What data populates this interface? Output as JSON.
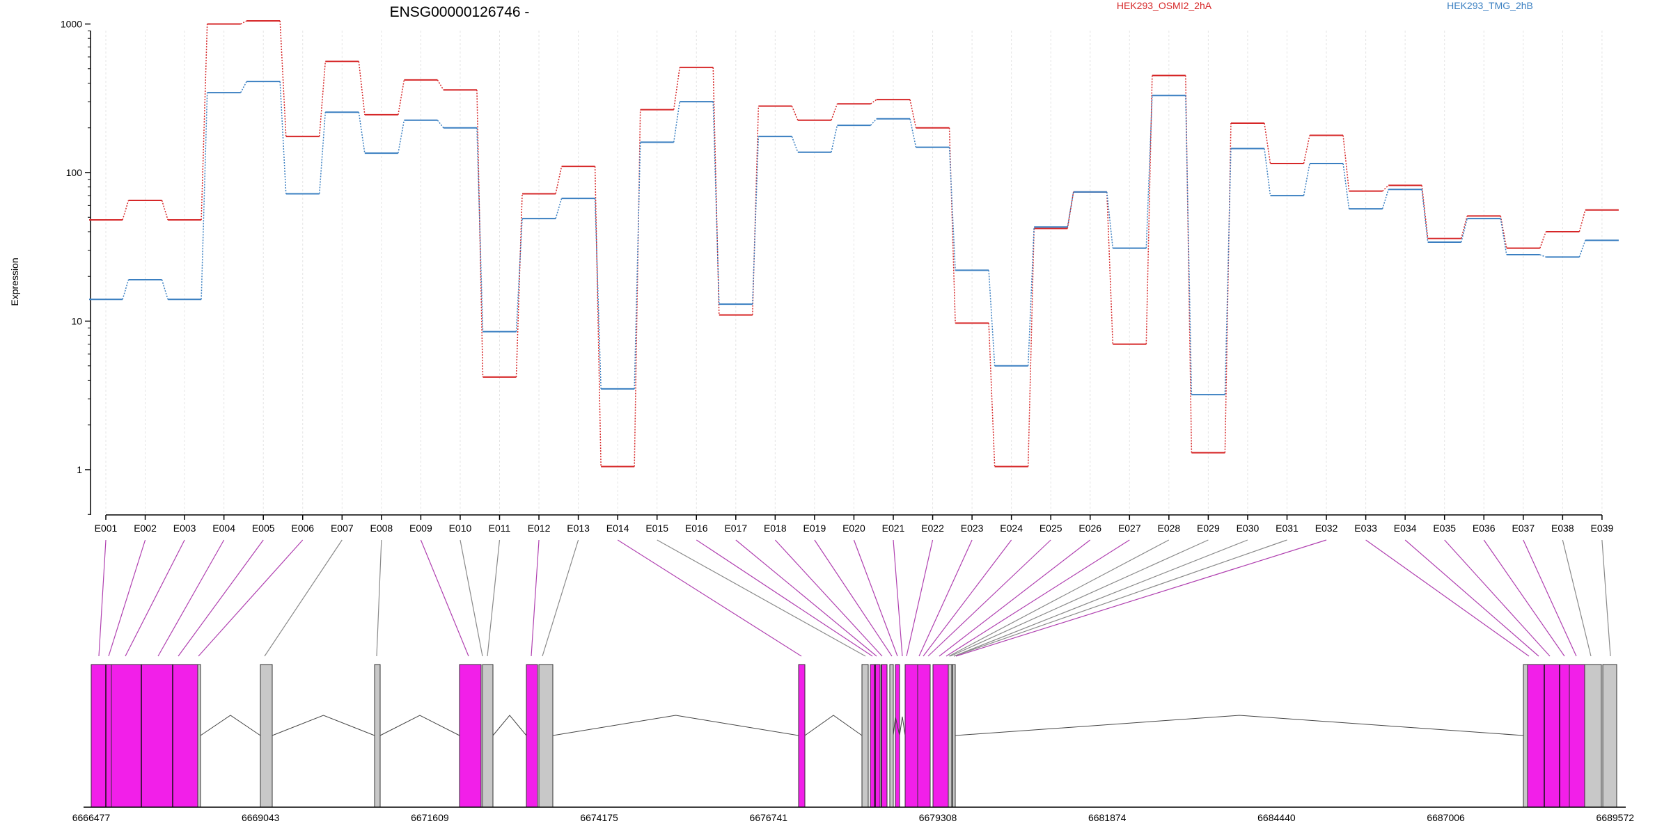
{
  "title": "ENSG00000126746 -",
  "legend": [
    {
      "name": "HEK293_OSMI2_2hA",
      "color": "#d62728"
    },
    {
      "name": "HEK293_TMG_2hB",
      "color": "#3a7fc1"
    }
  ],
  "chart_data": {
    "type": "line",
    "scale": "log",
    "ylabel": "Expression",
    "yticks": [
      1,
      10,
      100,
      1000
    ],
    "ylim": [
      0.4,
      1500
    ],
    "categories": [
      "E001",
      "E002",
      "E003",
      "E004",
      "E005",
      "E006",
      "E007",
      "E008",
      "E009",
      "E010",
      "E011",
      "E012",
      "E013",
      "E014",
      "E015",
      "E016",
      "E017",
      "E018",
      "E019",
      "E020",
      "E021",
      "E022",
      "E023",
      "E024",
      "E025",
      "E026",
      "E027",
      "E028",
      "E029",
      "E030",
      "E031",
      "E032",
      "E033",
      "E034",
      "E035",
      "E036",
      "E037",
      "E038",
      "E039"
    ],
    "series": [
      {
        "name": "HEK293_OSMI2_2hA",
        "color": "#d62728",
        "values": [
          48,
          65,
          48,
          1000,
          1050,
          175,
          560,
          245,
          420,
          360,
          4.2,
          72,
          110,
          1.05,
          265,
          510,
          11,
          280,
          225,
          290,
          310,
          200,
          9.7,
          1.05,
          42,
          74,
          7.0,
          450,
          1.3,
          215,
          115,
          178,
          75,
          82,
          36,
          51,
          31,
          40,
          56
        ]
      },
      {
        "name": "HEK293_TMG_2hB",
        "color": "#3a7fc1",
        "values": [
          14,
          19,
          14,
          345,
          410,
          72,
          255,
          135,
          225,
          200,
          8.5,
          49,
          67,
          3.5,
          160,
          300,
          13,
          175,
          137,
          208,
          230,
          148,
          22,
          5.0,
          43,
          74,
          31,
          330,
          3.2,
          145,
          70,
          115,
          57,
          77,
          34,
          49,
          28,
          27,
          35
        ]
      }
    ]
  },
  "gene_model": {
    "start_label": "6666477",
    "axis_ticks": [
      "6666477",
      "6669043",
      "6671609",
      "6674175",
      "6676741",
      "6679308",
      "6681874",
      "6684440",
      "6687006",
      "6689572"
    ],
    "colors": {
      "significant": "#f21fe9",
      "normal": "#c8c8c8",
      "line_sig": "#b040b0",
      "line_norm": "#8a8a8a"
    }
  }
}
